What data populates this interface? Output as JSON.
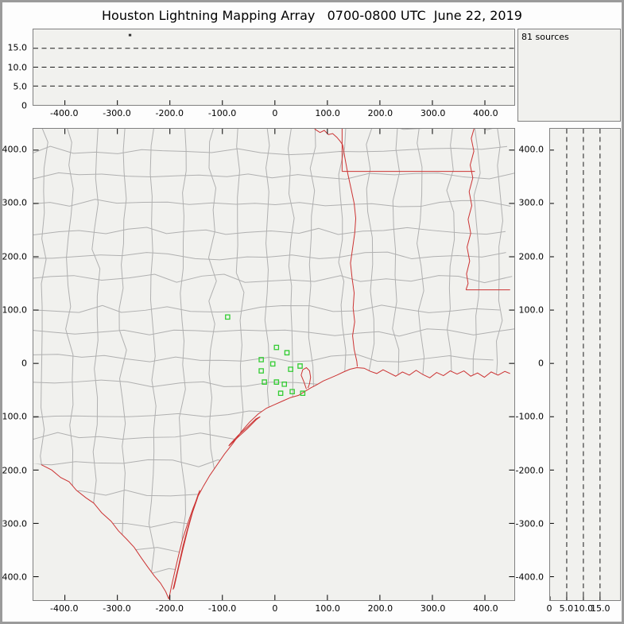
{
  "title": "Houston Lightning Mapping Array   0700-0800 UTC  June 22, 2019",
  "sources_label": "81 sources",
  "colors": {
    "panel_bg": "#f1f1ee",
    "frame_gray": "#9b9b9b",
    "panel_border": "#808080",
    "county_line": "#b0b0b0",
    "state_border_red": "#cc3333",
    "station_green": "#33cc33",
    "dashed_line": "#1a1a1a",
    "text": "#000000"
  },
  "axes": {
    "x_tick_labels": [
      "-400.0",
      "-300.0",
      "-200.0",
      "-100.0",
      "0",
      "100.0",
      "200.0",
      "300.0",
      "400.0"
    ],
    "y_tick_labels": [
      "400.0",
      "300.0",
      "200.0",
      "100.0",
      "0",
      "-100.0",
      "-200.0",
      "-300.0",
      "-400.0"
    ],
    "alt_tick_labels_desc": [
      "15.0",
      "10.0",
      "5.0",
      "0"
    ],
    "alt_tick_labels_asc": [
      "0",
      "5.0",
      "10.0",
      "15.0"
    ],
    "alt_dash_levels": [
      5,
      10,
      15
    ],
    "x_range_km": [
      -460,
      456
    ],
    "y_range_km": [
      -444,
      440
    ],
    "alt_range_top_km": [
      0,
      20
    ],
    "alt_range_right_km": [
      0,
      21
    ]
  },
  "chart_data": [
    {
      "type": "scatter",
      "panel": "altitude_vs_east_west_distance",
      "units": "km",
      "xlim": [
        -460,
        456
      ],
      "ylim_altitude_km": [
        0,
        20
      ],
      "x_tick_values": [
        -400,
        -300,
        -200,
        -100,
        0,
        100,
        200,
        300,
        400
      ],
      "y_tick_values": [
        0,
        5,
        10,
        15
      ],
      "dashed_hlines_km": [
        5,
        10,
        15
      ],
      "points_xy": [
        [
          -276,
          18.5
        ]
      ]
    },
    {
      "type": "scatter",
      "panel": "plan_view_map",
      "units": "km",
      "xlim": [
        -460,
        456
      ],
      "ylim": [
        -444,
        440
      ],
      "x_tick_values": [
        -400,
        -300,
        -200,
        -100,
        0,
        100,
        200,
        300,
        400
      ],
      "y_tick_values": [
        400,
        300,
        200,
        100,
        0,
        -100,
        -200,
        -300,
        -400
      ],
      "total_sources": 81,
      "station_markers_km": [
        [
          -90,
          87
        ],
        [
          3,
          30
        ],
        [
          23,
          20
        ],
        [
          -26,
          7
        ],
        [
          -4,
          -1
        ],
        [
          -26,
          -14
        ],
        [
          30,
          -11
        ],
        [
          48,
          -5
        ],
        [
          -20,
          -35
        ],
        [
          3,
          -35
        ],
        [
          18,
          -39
        ],
        [
          11,
          -56
        ],
        [
          33,
          -53
        ],
        [
          53,
          -56
        ]
      ]
    },
    {
      "type": "scatter",
      "panel": "altitude_vs_north_south_distance",
      "units": "km",
      "xlim_altitude_km": [
        0,
        21
      ],
      "ylim": [
        -444,
        440
      ],
      "x_tick_values": [
        0,
        5,
        10,
        15
      ],
      "dashed_vlines_km": [
        5,
        10,
        15
      ],
      "points_xy": []
    },
    {
      "type": "histogram",
      "panel": "altitude_histogram",
      "annotation": "81 sources",
      "bars": []
    }
  ],
  "map": {
    "borders": [
      {
        "name": "rio-grande",
        "pts": [
          [
            -445,
            -190
          ],
          [
            -425,
            -200
          ],
          [
            -408,
            -214
          ],
          [
            -392,
            -222
          ],
          [
            -378,
            -238
          ],
          [
            -360,
            -252
          ],
          [
            -345,
            -262
          ],
          [
            -330,
            -280
          ],
          [
            -312,
            -296
          ],
          [
            -298,
            -314
          ],
          [
            -282,
            -330
          ],
          [
            -268,
            -345
          ],
          [
            -255,
            -364
          ],
          [
            -242,
            -382
          ],
          [
            -230,
            -398
          ],
          [
            -218,
            -412
          ],
          [
            -208,
            -428
          ],
          [
            -202,
            -442
          ]
        ]
      },
      {
        "name": "gulf-coastline",
        "pts": [
          [
            -202,
            -442
          ],
          [
            -197,
            -418
          ],
          [
            -191,
            -392
          ],
          [
            -184,
            -362
          ],
          [
            -176,
            -330
          ],
          [
            -166,
            -300
          ],
          [
            -156,
            -272
          ],
          [
            -147,
            -250
          ],
          [
            -136,
            -230
          ],
          [
            -124,
            -210
          ],
          [
            -110,
            -190
          ],
          [
            -96,
            -170
          ],
          [
            -80,
            -150
          ],
          [
            -64,
            -128
          ],
          [
            -48,
            -110
          ],
          [
            -32,
            -95
          ],
          [
            -16,
            -84
          ],
          [
            0,
            -77
          ],
          [
            16,
            -70
          ],
          [
            30,
            -64
          ],
          [
            45,
            -60
          ],
          [
            58,
            -52
          ],
          [
            68,
            -46
          ],
          [
            80,
            -40
          ],
          [
            92,
            -33
          ],
          [
            104,
            -28
          ],
          [
            118,
            -22
          ],
          [
            131,
            -16
          ],
          [
            143,
            -11
          ],
          [
            156,
            -8
          ],
          [
            170,
            -9
          ],
          [
            182,
            -15
          ],
          [
            194,
            -19
          ],
          [
            206,
            -12
          ],
          [
            218,
            -18
          ],
          [
            230,
            -24
          ],
          [
            243,
            -16
          ],
          [
            256,
            -22
          ],
          [
            269,
            -13
          ],
          [
            282,
            -21
          ],
          [
            295,
            -27
          ],
          [
            308,
            -17
          ],
          [
            321,
            -23
          ],
          [
            334,
            -14
          ],
          [
            347,
            -20
          ],
          [
            360,
            -14
          ],
          [
            373,
            -24
          ],
          [
            386,
            -18
          ],
          [
            399,
            -26
          ],
          [
            412,
            -16
          ],
          [
            425,
            -22
          ],
          [
            438,
            -15
          ],
          [
            448,
            -19
          ]
        ]
      },
      {
        "name": "red-river-tx-ok",
        "pts": [
          [
            70,
            446
          ],
          [
            78,
            438
          ],
          [
            86,
            433
          ],
          [
            94,
            437
          ],
          [
            102,
            429
          ],
          [
            110,
            431
          ],
          [
            118,
            424
          ],
          [
            124,
            417
          ],
          [
            129,
            410
          ]
        ]
      },
      {
        "name": "ok-ar-border",
        "pts": [
          [
            128,
            446
          ],
          [
            128,
            360
          ]
        ]
      },
      {
        "name": "ar-la-border",
        "pts": [
          [
            128,
            360
          ],
          [
            381,
            360
          ]
        ]
      },
      {
        "name": "tx-la-border-sabine",
        "pts": [
          [
            129,
            410
          ],
          [
            134,
            382
          ],
          [
            139,
            355
          ],
          [
            145,
            328
          ],
          [
            151,
            300
          ],
          [
            154,
            272
          ],
          [
            152,
            244
          ],
          [
            148,
            216
          ],
          [
            144,
            188
          ],
          [
            147,
            160
          ],
          [
            151,
            132
          ],
          [
            149,
            104
          ],
          [
            152,
            78
          ],
          [
            148,
            52
          ],
          [
            151,
            26
          ],
          [
            156,
            4
          ],
          [
            157,
            -6
          ]
        ]
      },
      {
        "name": "mississippi-river",
        "pts": [
          [
            381,
            446
          ],
          [
            374,
            422
          ],
          [
            379,
            398
          ],
          [
            372,
            372
          ],
          [
            377,
            348
          ],
          [
            370,
            322
          ],
          [
            375,
            296
          ],
          [
            368,
            270
          ],
          [
            373,
            244
          ],
          [
            366,
            218
          ],
          [
            371,
            192
          ],
          [
            365,
            168
          ],
          [
            368,
            150
          ],
          [
            364,
            138
          ]
        ]
      },
      {
        "name": "la-ms-border",
        "pts": [
          [
            364,
            138
          ],
          [
            448,
            138
          ]
        ]
      },
      {
        "name": "galveston-bay",
        "pts": [
          [
            60,
            -48
          ],
          [
            55,
            -34
          ],
          [
            50,
            -22
          ],
          [
            53,
            -12
          ],
          [
            60,
            -8
          ],
          [
            66,
            -14
          ],
          [
            68,
            -26
          ],
          [
            66,
            -38
          ],
          [
            63,
            -46
          ]
        ]
      },
      {
        "name": "padre-island",
        "pts": [
          [
            -194,
            -424
          ],
          [
            -184,
            -382
          ],
          [
            -175,
            -342
          ],
          [
            -165,
            -305
          ],
          [
            -155,
            -272
          ],
          [
            -147,
            -248
          ],
          [
            -143,
            -238
          ],
          [
            -148,
            -254
          ],
          [
            -157,
            -280
          ],
          [
            -166,
            -312
          ],
          [
            -176,
            -352
          ],
          [
            -186,
            -394
          ],
          [
            -192,
            -420
          ],
          [
            -194,
            -424
          ]
        ]
      },
      {
        "name": "matagorda-island",
        "pts": [
          [
            -88,
            -155
          ],
          [
            -70,
            -138
          ],
          [
            -52,
            -122
          ],
          [
            -36,
            -106
          ],
          [
            -28,
            -100
          ],
          [
            -36,
            -104
          ],
          [
            -52,
            -119
          ],
          [
            -70,
            -135
          ],
          [
            -86,
            -152
          ],
          [
            -88,
            -155
          ]
        ]
      }
    ]
  }
}
